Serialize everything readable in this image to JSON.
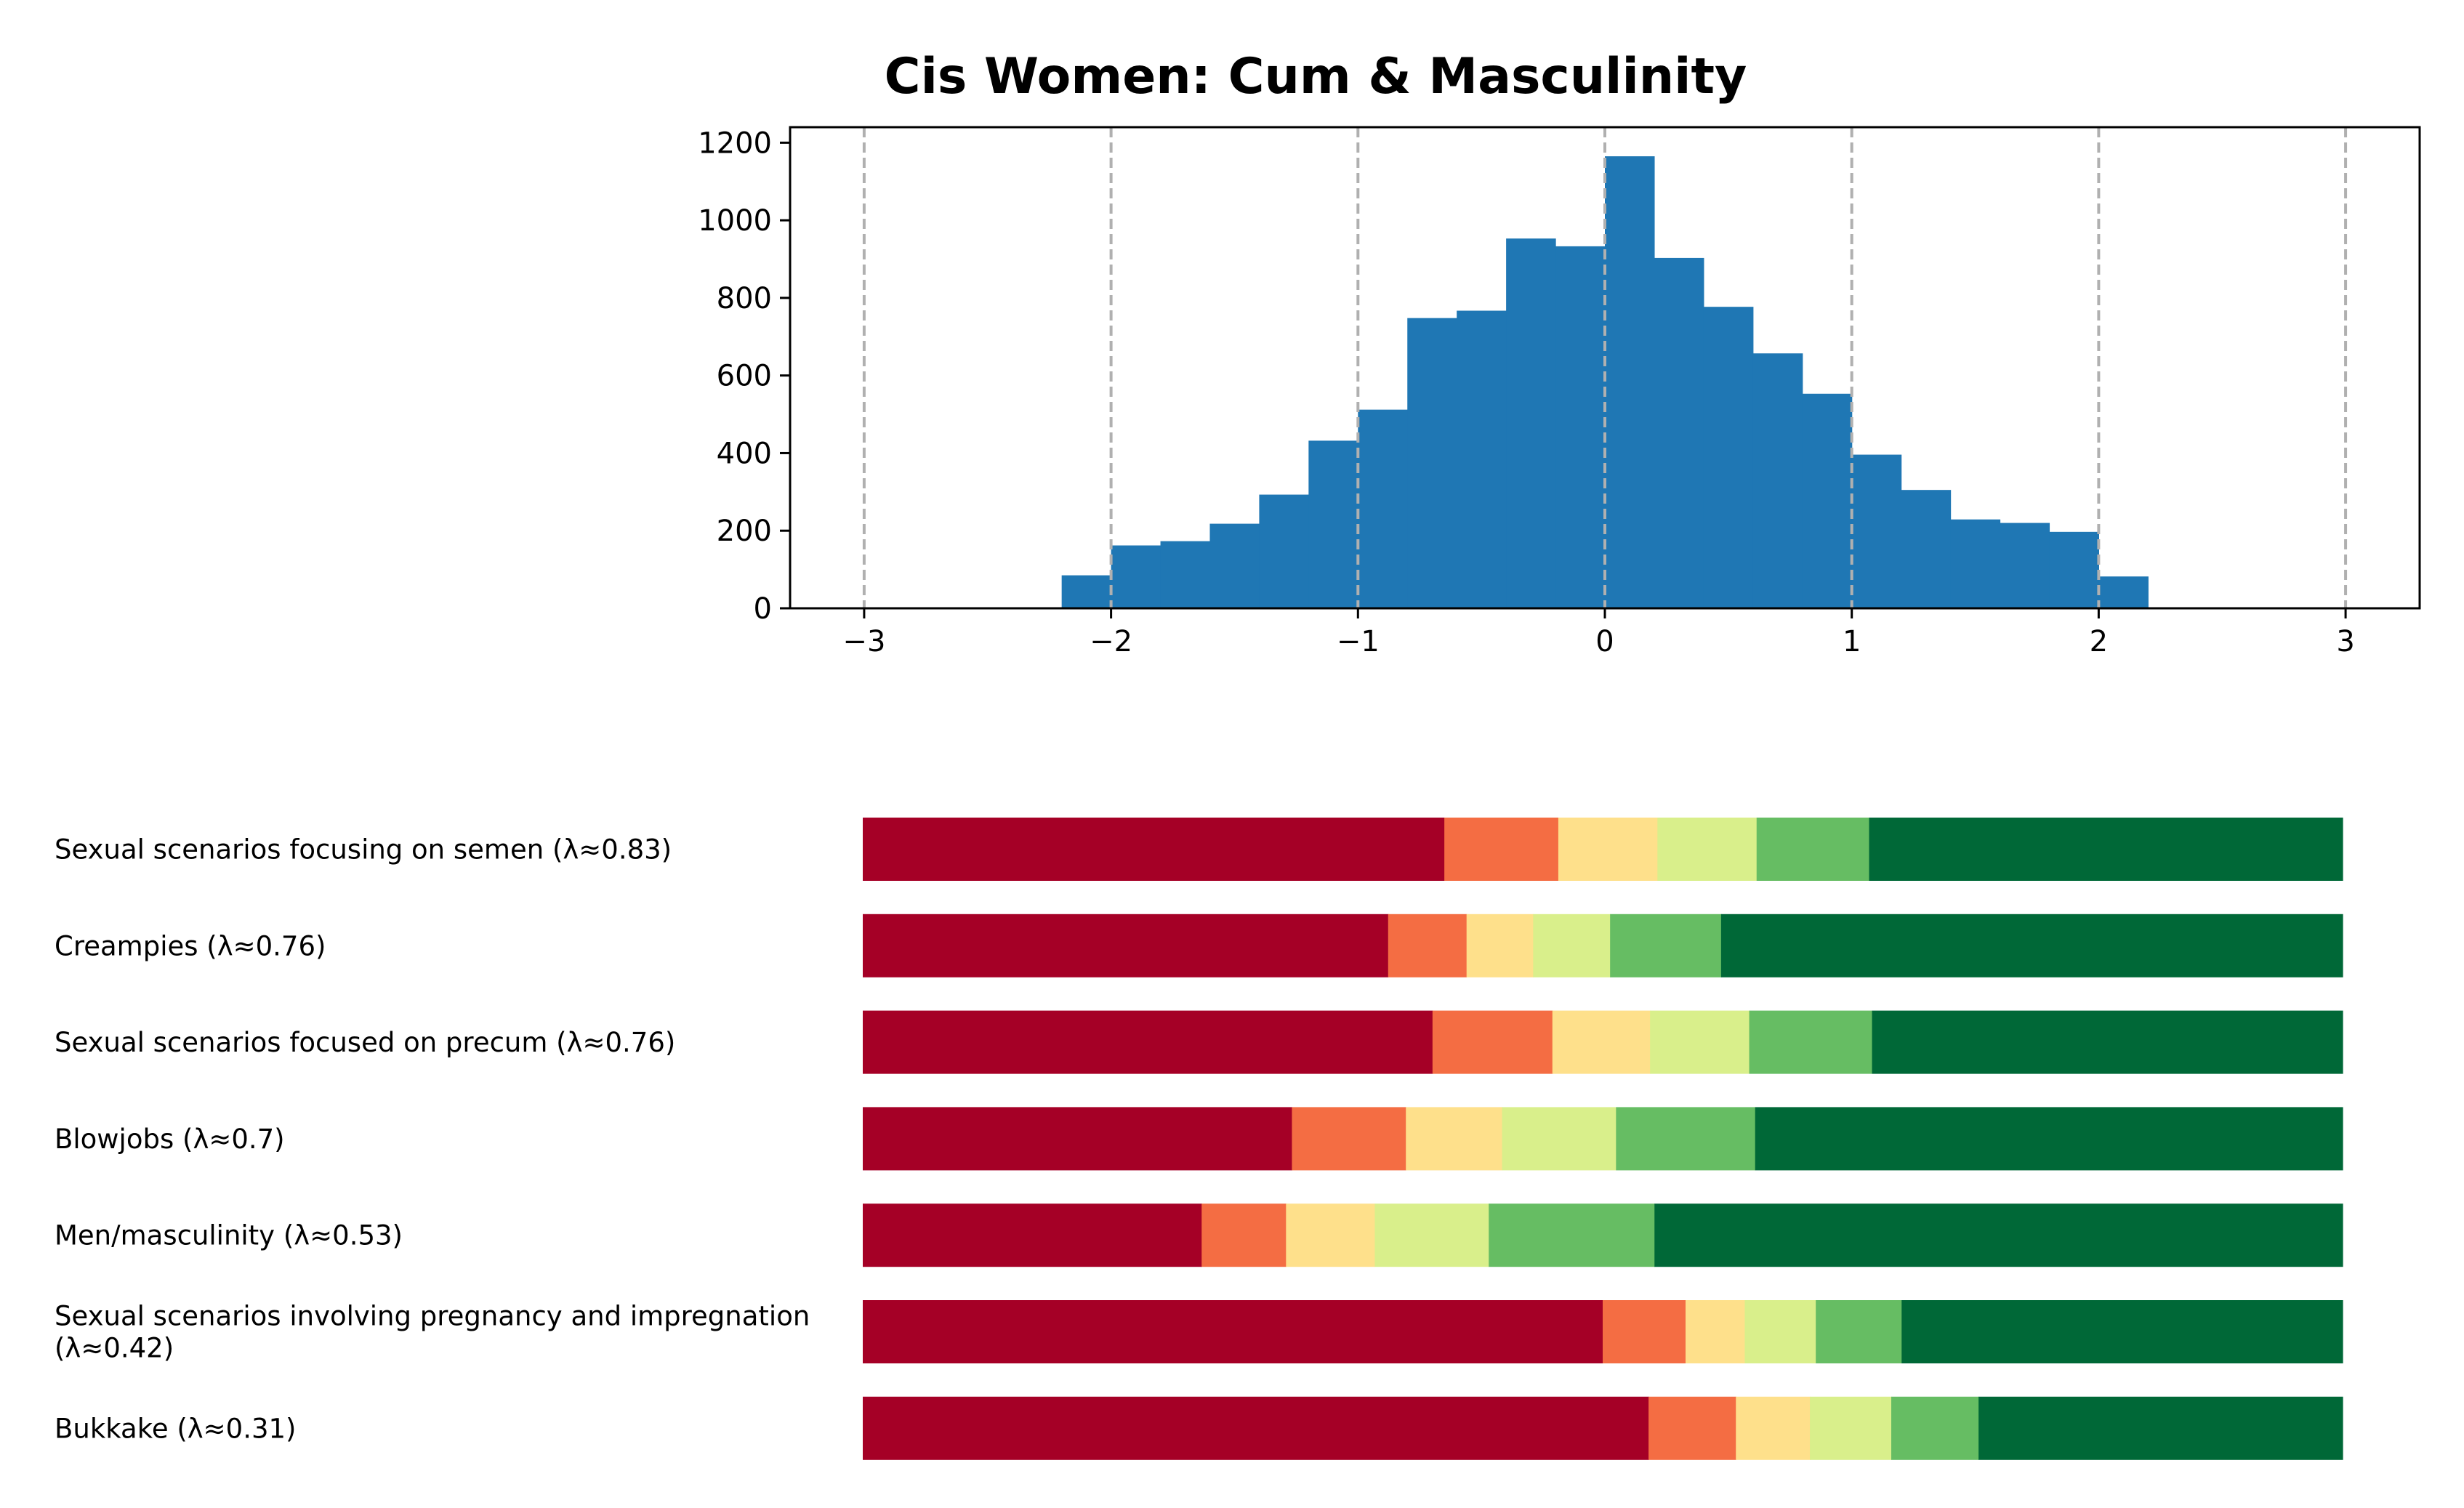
{
  "chart_data": [
    {
      "type": "bar",
      "subtype": "histogram",
      "title": "Cis Women: Cum & Masculinity",
      "xlabel": "",
      "ylabel": "",
      "xlim": [
        -3.3,
        3.3
      ],
      "ylim": [
        0,
        1240
      ],
      "x_ticks": [
        "−3",
        "−2",
        "−1",
        "0",
        "1",
        "2",
        "3"
      ],
      "x_tick_values": [
        -3,
        -2,
        -1,
        0,
        1,
        2,
        3
      ],
      "y_ticks": [
        "0",
        "200",
        "400",
        "600",
        "800",
        "1000",
        "1200"
      ],
      "y_tick_values": [
        0,
        200,
        400,
        600,
        800,
        1000,
        1200
      ],
      "grid": "vertical dashed lines at integer x",
      "bin_width": 0.2,
      "bin_starts": [
        -2.2,
        -2.0,
        -1.8,
        -1.6,
        -1.4,
        -1.2,
        -1.0,
        -0.8,
        -0.6,
        -0.4,
        -0.2,
        0.0,
        0.2,
        0.4,
        0.6,
        0.8,
        1.0,
        1.2,
        1.4,
        1.6,
        1.8,
        2.0
      ],
      "values": [
        85,
        162,
        173,
        218,
        293,
        432,
        512,
        748,
        767,
        953,
        933,
        1165,
        903,
        777,
        657,
        553,
        396,
        305,
        229,
        220,
        197,
        82
      ],
      "color": "#1f77b4"
    },
    {
      "type": "bar",
      "subtype": "stacked-horizontal-100",
      "categories": [
        [
          "Sexual scenarios focusing on semen (λ≈0.83)"
        ],
        [
          "Creampies (λ≈0.76)"
        ],
        [
          "Sexual scenarios focused on precum (λ≈0.76)"
        ],
        [
          "Blowjobs (λ≈0.7)"
        ],
        [
          "Men/masculinity (λ≈0.53)"
        ],
        [
          "Sexual scenarios involving pregnancy and impregnation",
          "(λ≈0.42)"
        ],
        [
          "Bukkake (λ≈0.31)"
        ]
      ],
      "segment_colors": [
        "#a50026",
        "#f46d43",
        "#fee08b",
        "#d9ef8b",
        "#66bd63",
        "#006837"
      ],
      "rows": [
        [
          39.3,
          7.7,
          6.7,
          6.7,
          7.6,
          32.0
        ],
        [
          35.5,
          5.3,
          4.5,
          5.2,
          7.5,
          42.0
        ],
        [
          38.5,
          8.1,
          6.6,
          6.7,
          8.3,
          31.8
        ],
        [
          29.0,
          7.7,
          6.5,
          7.7,
          9.4,
          39.7
        ],
        [
          22.9,
          5.7,
          6.0,
          7.7,
          11.2,
          46.5
        ],
        [
          50.0,
          5.6,
          4.0,
          4.8,
          5.8,
          29.8
        ],
        [
          53.1,
          5.9,
          5.0,
          5.5,
          5.9,
          24.6
        ]
      ]
    }
  ]
}
